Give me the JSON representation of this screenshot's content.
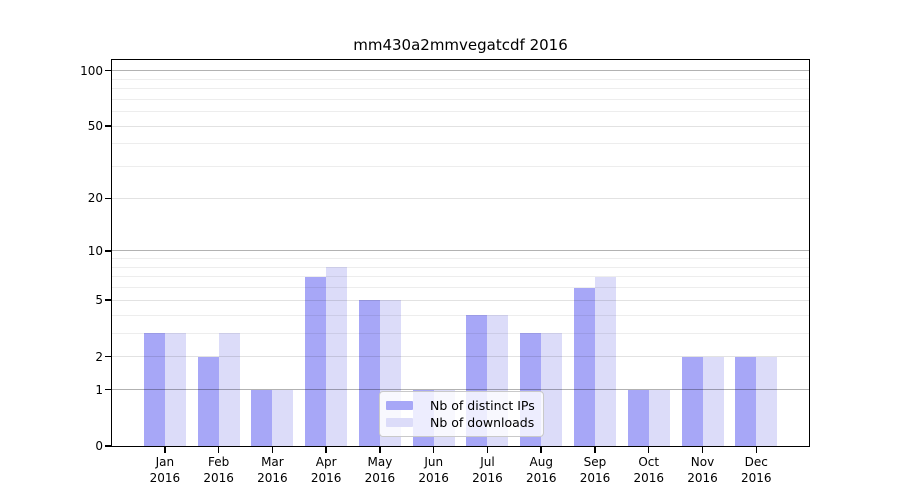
{
  "chart_data": {
    "type": "bar",
    "title": "mm430a2mmvegatcdf 2016",
    "categories": [
      "Jan",
      "Feb",
      "Mar",
      "Apr",
      "May",
      "Jun",
      "Jul",
      "Aug",
      "Sep",
      "Oct",
      "Nov",
      "Dec"
    ],
    "category_year": "2016",
    "series": [
      {
        "name": "Nb of distinct IPs",
        "color": "#a7a7f7",
        "values": [
          3,
          2,
          1,
          7,
          5,
          1,
          4,
          3,
          6,
          1,
          2,
          2
        ]
      },
      {
        "name": "Nb of downloads",
        "color": "#dcdcf9",
        "values": [
          3,
          3,
          1,
          8,
          5,
          1,
          4,
          3,
          7,
          1,
          2,
          2
        ]
      }
    ],
    "y_axis": {
      "scale": "log1p",
      "major_ticks": [
        0,
        1,
        2,
        5,
        10,
        20,
        50,
        100
      ],
      "decade_ticks": [
        1,
        10,
        100
      ],
      "minor_ticks": [
        3,
        4,
        6,
        7,
        8,
        9,
        30,
        40,
        60,
        70,
        80,
        90
      ],
      "top_value": 114
    },
    "xlabel": "",
    "ylabel": "",
    "grid": true,
    "legend": {
      "entries": [
        "Nb of distinct IPs",
        "Nb of downloads"
      ],
      "position": "lower-center"
    },
    "background_color": "#ffffff"
  }
}
